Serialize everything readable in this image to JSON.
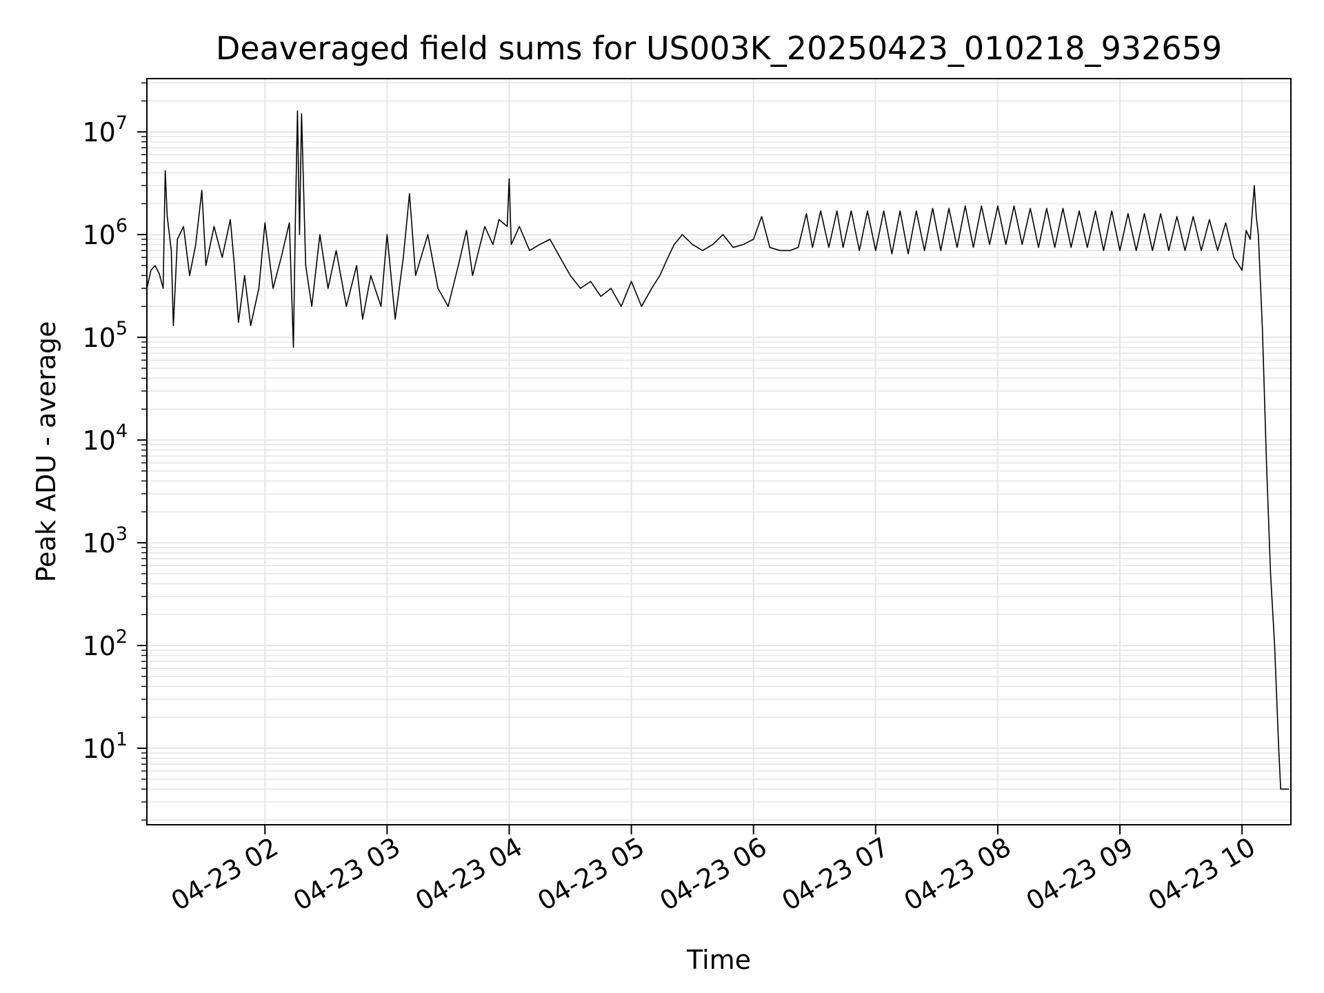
{
  "chart_data": {
    "type": "line",
    "title": "Deaveraged field sums for US003K_20250423_010218_932659",
    "xlabel": "Time",
    "ylabel": "Peak ADU - average",
    "y_scale": "log",
    "grid": true,
    "xlim": [
      "04-23 01:02",
      "04-23 10:24"
    ],
    "ylim": [
      1.8,
      33000000
    ],
    "x_ticks": [
      {
        "label": "04-23 02",
        "time": "04-23 02:00"
      },
      {
        "label": "04-23 03",
        "time": "04-23 03:00"
      },
      {
        "label": "04-23 04",
        "time": "04-23 04:00"
      },
      {
        "label": "04-23 05",
        "time": "04-23 05:00"
      },
      {
        "label": "04-23 06",
        "time": "04-23 06:00"
      },
      {
        "label": "04-23 07",
        "time": "04-23 07:00"
      },
      {
        "label": "04-23 08",
        "time": "04-23 08:00"
      },
      {
        "label": "04-23 09",
        "time": "04-23 09:00"
      },
      {
        "label": "04-23 10",
        "time": "04-23 10:00"
      }
    ],
    "y_ticks": [
      {
        "base": "10",
        "exp": "1",
        "value": 10
      },
      {
        "base": "10",
        "exp": "2",
        "value": 100
      },
      {
        "base": "10",
        "exp": "3",
        "value": 1000
      },
      {
        "base": "10",
        "exp": "4",
        "value": 10000
      },
      {
        "base": "10",
        "exp": "5",
        "value": 100000
      },
      {
        "base": "10",
        "exp": "6",
        "value": 1000000
      },
      {
        "base": "10",
        "exp": "7",
        "value": 10000000
      }
    ],
    "line_color": "#000000",
    "grid_color": "#e6e6e6",
    "series": [
      {
        "points": [
          [
            "04-23 01:02",
            300000
          ],
          [
            "04-23 01:04",
            450000
          ],
          [
            "04-23 01:06",
            500000
          ],
          [
            "04-23 01:08",
            420000
          ],
          [
            "04-23 01:10",
            300000
          ],
          [
            "04-23 01:11",
            4200000
          ],
          [
            "04-23 01:12",
            1500000
          ],
          [
            "04-23 01:14",
            700000
          ],
          [
            "04-23 01:15",
            130000
          ],
          [
            "04-23 01:17",
            900000
          ],
          [
            "04-23 01:20",
            1200000
          ],
          [
            "04-23 01:23",
            400000
          ],
          [
            "04-23 01:26",
            800000
          ],
          [
            "04-23 01:29",
            2700000
          ],
          [
            "04-23 01:31",
            500000
          ],
          [
            "04-23 01:35",
            1200000
          ],
          [
            "04-23 01:39",
            600000
          ],
          [
            "04-23 01:43",
            1400000
          ],
          [
            "04-23 01:45",
            500000
          ],
          [
            "04-23 01:47",
            140000
          ],
          [
            "04-23 01:50",
            400000
          ],
          [
            "04-23 01:53",
            130000
          ],
          [
            "04-23 01:57",
            300000
          ],
          [
            "04-23 02:00",
            1300000
          ],
          [
            "04-23 02:04",
            300000
          ],
          [
            "04-23 02:08",
            600000
          ],
          [
            "04-23 02:12",
            1300000
          ],
          [
            "04-23 02:14",
            80000
          ],
          [
            "04-23 02:15",
            1600000
          ],
          [
            "04-23 02:16",
            16000000
          ],
          [
            "04-23 02:17",
            1000000
          ],
          [
            "04-23 02:18",
            15000000
          ],
          [
            "04-23 02:20",
            500000
          ],
          [
            "04-23 02:23",
            200000
          ],
          [
            "04-23 02:27",
            1000000
          ],
          [
            "04-23 02:31",
            300000
          ],
          [
            "04-23 02:35",
            700000
          ],
          [
            "04-23 02:40",
            200000
          ],
          [
            "04-23 02:45",
            500000
          ],
          [
            "04-23 02:48",
            150000
          ],
          [
            "04-23 02:52",
            400000
          ],
          [
            "04-23 02:57",
            200000
          ],
          [
            "04-23 03:00",
            1000000
          ],
          [
            "04-23 03:04",
            150000
          ],
          [
            "04-23 03:08",
            600000
          ],
          [
            "04-23 03:11",
            2500000
          ],
          [
            "04-23 03:14",
            400000
          ],
          [
            "04-23 03:20",
            1000000
          ],
          [
            "04-23 03:25",
            300000
          ],
          [
            "04-23 03:30",
            200000
          ],
          [
            "04-23 03:35",
            500000
          ],
          [
            "04-23 03:39",
            1100000
          ],
          [
            "04-23 03:42",
            400000
          ],
          [
            "04-23 03:45",
            700000
          ],
          [
            "04-23 03:48",
            1200000
          ],
          [
            "04-23 03:52",
            800000
          ],
          [
            "04-23 03:55",
            1400000
          ],
          [
            "04-23 03:59",
            1200000
          ],
          [
            "04-23 04:00",
            3500000
          ],
          [
            "04-23 04:01",
            800000
          ],
          [
            "04-23 04:05",
            1200000
          ],
          [
            "04-23 04:10",
            700000
          ],
          [
            "04-23 04:15",
            800000
          ],
          [
            "04-23 04:20",
            900000
          ],
          [
            "04-23 04:25",
            600000
          ],
          [
            "04-23 04:30",
            400000
          ],
          [
            "04-23 04:35",
            300000
          ],
          [
            "04-23 04:40",
            350000
          ],
          [
            "04-23 04:45",
            250000
          ],
          [
            "04-23 04:50",
            300000
          ],
          [
            "04-23 04:55",
            200000
          ],
          [
            "04-23 05:00",
            350000
          ],
          [
            "04-23 05:05",
            200000
          ],
          [
            "04-23 05:10",
            300000
          ],
          [
            "04-23 05:14",
            400000
          ],
          [
            "04-23 05:18",
            600000
          ],
          [
            "04-23 05:21",
            800000
          ],
          [
            "04-23 05:25",
            1000000
          ],
          [
            "04-23 05:30",
            800000
          ],
          [
            "04-23 05:35",
            700000
          ],
          [
            "04-23 05:40",
            800000
          ],
          [
            "04-23 05:45",
            1000000
          ],
          [
            "04-23 05:50",
            750000
          ],
          [
            "04-23 05:55",
            800000
          ],
          [
            "04-23 06:00",
            900000
          ],
          [
            "04-23 06:04",
            1500000
          ],
          [
            "04-23 06:08",
            750000
          ],
          [
            "04-23 06:13",
            700000
          ],
          [
            "04-23 06:18",
            700000
          ],
          [
            "04-23 06:22",
            750000
          ],
          [
            "04-23 06:26",
            1600000
          ],
          [
            "04-23 06:29",
            750000
          ],
          [
            "04-23 06:33",
            1700000
          ],
          [
            "04-23 06:37",
            750000
          ],
          [
            "04-23 06:41",
            1700000
          ],
          [
            "04-23 06:44",
            750000
          ],
          [
            "04-23 06:48",
            1700000
          ],
          [
            "04-23 06:52",
            700000
          ],
          [
            "04-23 06:56",
            1700000
          ],
          [
            "04-23 07:00",
            700000
          ],
          [
            "04-23 07:04",
            1700000
          ],
          [
            "04-23 07:08",
            650000
          ],
          [
            "04-23 07:12",
            1700000
          ],
          [
            "04-23 07:16",
            650000
          ],
          [
            "04-23 07:20",
            1700000
          ],
          [
            "04-23 07:24",
            700000
          ],
          [
            "04-23 07:28",
            1800000
          ],
          [
            "04-23 07:32",
            700000
          ],
          [
            "04-23 07:36",
            1800000
          ],
          [
            "04-23 07:40",
            750000
          ],
          [
            "04-23 07:44",
            1900000
          ],
          [
            "04-23 07:48",
            750000
          ],
          [
            "04-23 07:52",
            1900000
          ],
          [
            "04-23 07:56",
            800000
          ],
          [
            "04-23 08:00",
            1900000
          ],
          [
            "04-23 08:04",
            800000
          ],
          [
            "04-23 08:08",
            1900000
          ],
          [
            "04-23 08:12",
            800000
          ],
          [
            "04-23 08:16",
            1800000
          ],
          [
            "04-23 08:20",
            750000
          ],
          [
            "04-23 08:24",
            1800000
          ],
          [
            "04-23 08:28",
            750000
          ],
          [
            "04-23 08:32",
            1800000
          ],
          [
            "04-23 08:36",
            750000
          ],
          [
            "04-23 08:40",
            1700000
          ],
          [
            "04-23 08:44",
            750000
          ],
          [
            "04-23 08:48",
            1700000
          ],
          [
            "04-23 08:52",
            700000
          ],
          [
            "04-23 08:56",
            1700000
          ],
          [
            "04-23 09:00",
            700000
          ],
          [
            "04-23 09:04",
            1600000
          ],
          [
            "04-23 09:08",
            700000
          ],
          [
            "04-23 09:12",
            1600000
          ],
          [
            "04-23 09:16",
            700000
          ],
          [
            "04-23 09:20",
            1600000
          ],
          [
            "04-23 09:24",
            700000
          ],
          [
            "04-23 09:28",
            1500000
          ],
          [
            "04-23 09:32",
            700000
          ],
          [
            "04-23 09:36",
            1500000
          ],
          [
            "04-23 09:40",
            700000
          ],
          [
            "04-23 09:44",
            1400000
          ],
          [
            "04-23 09:48",
            700000
          ],
          [
            "04-23 09:52",
            1300000
          ],
          [
            "04-23 09:56",
            600000
          ],
          [
            "04-23 10:00",
            450000
          ],
          [
            "04-23 10:02",
            1100000
          ],
          [
            "04-23 10:04",
            900000
          ],
          [
            "04-23 10:06",
            3000000
          ],
          [
            "04-23 10:07",
            1500000
          ],
          [
            "04-23 10:08",
            1000000
          ],
          [
            "04-23 10:10",
            120000
          ],
          [
            "04-23 10:12",
            6000
          ],
          [
            "04-23 10:14",
            500
          ],
          [
            "04-23 10:16",
            100
          ],
          [
            "04-23 10:18",
            10
          ],
          [
            "04-23 10:19",
            4
          ],
          [
            "04-23 10:23",
            4
          ]
        ]
      }
    ]
  }
}
